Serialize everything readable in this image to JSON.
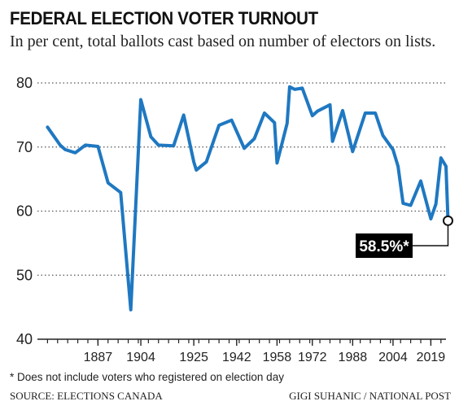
{
  "header": {
    "title": "FEDERAL ELECTION VOTER TURNOUT",
    "subtitle": "In per cent, total ballots cast based on number of electors on lists."
  },
  "footer": {
    "note": "* Does not include voters who registered on election day",
    "source": "SOURCE: ELECTIONS CANADA",
    "credit": "GIGI SUHANIC  / NATIONAL POST"
  },
  "colors": {
    "line": "#1f78c1",
    "label_bg": "#000000",
    "label_text": "#ffffff",
    "grid": "#555555"
  },
  "chart_data": {
    "type": "line",
    "title": "FEDERAL ELECTION VOTER TURNOUT",
    "ylabel": "",
    "xlabel": "",
    "ylim": [
      40,
      80
    ],
    "xlim": [
      1863,
      2025
    ],
    "y_ticks": [
      40,
      50,
      60,
      70,
      80
    ],
    "x_ticks": [
      1887,
      1904,
      1925,
      1942,
      1958,
      1972,
      1988,
      2004,
      2019
    ],
    "grid": "horizontal dotted",
    "series": [
      {
        "points": [
          [
            1867,
            73.1
          ],
          [
            1872,
            70.3
          ],
          [
            1874,
            69.6
          ],
          [
            1878,
            69.1
          ],
          [
            1882,
            70.3
          ],
          [
            1887,
            70.1
          ],
          [
            1891,
            64.4
          ],
          [
            1896,
            62.9
          ],
          [
            1900,
            44.6
          ],
          [
            1904,
            77.4
          ],
          [
            1908,
            71.6
          ],
          [
            1911,
            70.3
          ],
          [
            1917,
            70.2
          ],
          [
            1921,
            75.0
          ],
          [
            1925,
            67.7
          ],
          [
            1926,
            66.4
          ],
          [
            1930,
            67.7
          ],
          [
            1935,
            73.4
          ],
          [
            1940,
            74.2
          ],
          [
            1945,
            69.8
          ],
          [
            1949,
            71.3
          ],
          [
            1953,
            75.3
          ],
          [
            1957,
            73.8
          ],
          [
            1958,
            67.5
          ],
          [
            1962,
            73.7
          ],
          [
            1963,
            79.4
          ],
          [
            1965,
            79.0
          ],
          [
            1968,
            79.2
          ],
          [
            1972,
            74.9
          ],
          [
            1974,
            75.6
          ],
          [
            1979,
            76.6
          ],
          [
            1980,
            70.9
          ],
          [
            1984,
            75.7
          ],
          [
            1988,
            69.3
          ],
          [
            1993,
            75.3
          ],
          [
            1997,
            75.3
          ],
          [
            2000,
            71.8
          ],
          [
            2004,
            69.6
          ],
          [
            2006,
            67.0
          ],
          [
            2008,
            61.2
          ],
          [
            2011,
            60.9
          ],
          [
            2015,
            64.7
          ],
          [
            2019,
            58.8
          ],
          [
            2021,
            61.1
          ],
          [
            2023,
            68.3
          ],
          [
            2025,
            67.0
          ],
          [
            2025.8,
            58.5
          ]
        ]
      }
    ],
    "annotation": {
      "label": "58.5%*",
      "value": 58.5
    }
  }
}
